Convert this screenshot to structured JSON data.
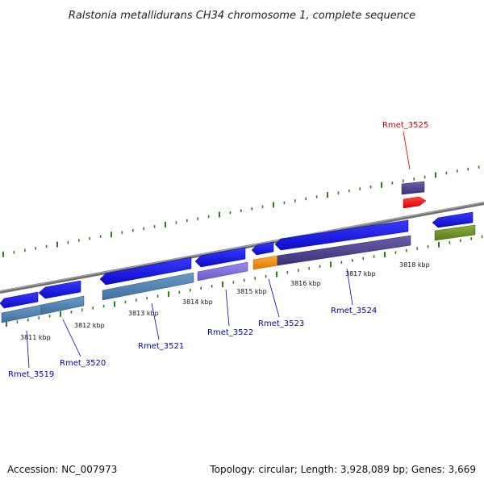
{
  "title": "Ralstonia metallidurans CH34 chromosome 1, complete sequence",
  "footer": {
    "accession": "Accession: NC_007973",
    "summary": "Topology: circular; Length: 3,928,089 bp; Genes: 3,669"
  },
  "kbp_labels": [
    "3811 kbp",
    "3812 kbp",
    "3813 kbp",
    "3814 kbp",
    "3815 kbp",
    "3816 kbp",
    "3817 kbp",
    "3818 kbp"
  ],
  "gene_labels": [
    {
      "text": "Rmet_3519",
      "color": "#0000aa"
    },
    {
      "text": "Rmet_3520",
      "color": "#0000aa"
    },
    {
      "text": "Rmet_3521",
      "color": "#0000aa"
    },
    {
      "text": "Rmet_3522",
      "color": "#0000aa"
    },
    {
      "text": "Rmet_3523",
      "color": "#0000aa"
    },
    {
      "text": "Rmet_3524",
      "color": "#0000aa"
    },
    {
      "text": "Rmet_3525",
      "color": "#cc0000"
    }
  ],
  "colors": {
    "backbone": "#888888",
    "tick": "#2e7d1a",
    "gene_blue": "#1010e0",
    "steelblue": "#4a7fb0",
    "slate": "#4b3f8a",
    "lavender": "#7b68d8",
    "orange": "#ff8c00",
    "red": "#ee1111",
    "olive": "#6b8e23"
  }
}
